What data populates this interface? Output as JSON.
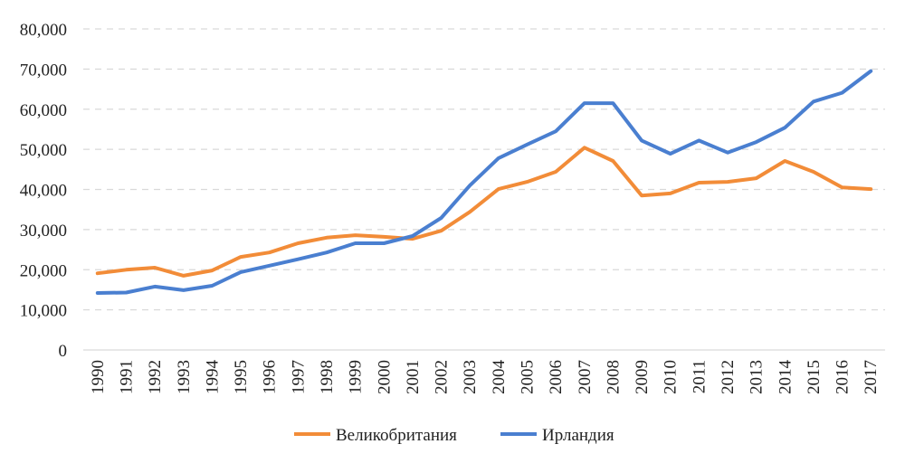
{
  "chart_data": {
    "type": "line",
    "title": "",
    "xlabel": "",
    "ylabel": "",
    "ylim": [
      0,
      80000
    ],
    "yticks": [
      0,
      10000,
      20000,
      30000,
      40000,
      50000,
      60000,
      70000,
      80000
    ],
    "ytick_labels": [
      "0",
      "10,000",
      "20,000",
      "30,000",
      "40,000",
      "50,000",
      "60,000",
      "70,000",
      "80,000"
    ],
    "grid": true,
    "legend_position": "bottom",
    "categories": [
      "1990",
      "1991",
      "1992",
      "1993",
      "1994",
      "1995",
      "1996",
      "1997",
      "1998",
      "1999",
      "2000",
      "2001",
      "2002",
      "2003",
      "2004",
      "2005",
      "2006",
      "2007",
      "2008",
      "2009",
      "2010",
      "2011",
      "2012",
      "2013",
      "2014",
      "2015",
      "2016",
      "2017"
    ],
    "series": [
      {
        "name": "Великобритания",
        "color": "#F28C38",
        "values": [
          19100,
          20000,
          20500,
          18500,
          19800,
          23200,
          24300,
          26600,
          28000,
          28600,
          28200,
          27700,
          29700,
          34400,
          40100,
          41900,
          44400,
          50400,
          47100,
          38500,
          39000,
          41700,
          41900,
          42800,
          47100,
          44400,
          40500,
          40100
        ]
      },
      {
        "name": "Ирландия",
        "color": "#4A7FD0",
        "values": [
          14200,
          14300,
          15800,
          14900,
          16000,
          19400,
          21000,
          22600,
          24300,
          26600,
          26600,
          28400,
          32900,
          41000,
          47800,
          51200,
          54500,
          61500,
          61500,
          52200,
          48900,
          52200,
          49200,
          51800,
          55400,
          61900,
          64100,
          69500
        ]
      }
    ]
  }
}
